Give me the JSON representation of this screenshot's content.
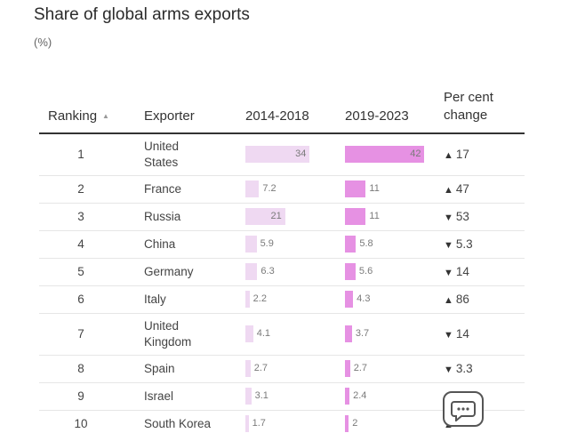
{
  "title": "Share of global arms exports",
  "subtitle": "(%)",
  "headers": {
    "ranking": "Ranking",
    "sort_icon": "sort-ascending-icon",
    "exporter": "Exporter",
    "period1": "2014-2018",
    "period2": "2019-2023",
    "change_line1": "Per cent",
    "change_line2": "change"
  },
  "colors": {
    "bar_2014_2018": "#efd9f2",
    "bar_2019_2023": "#e691e3",
    "rule": "#333333"
  },
  "chart_data": {
    "type": "table",
    "title": "Share of global arms exports",
    "subtitle": "(%)",
    "columns": [
      "Ranking",
      "Exporter",
      "2014-2018",
      "2019-2023",
      "Per cent change"
    ],
    "series": [
      {
        "name": "2014-2018",
        "values": [
          34,
          7.2,
          21,
          5.9,
          6.3,
          2.2,
          4.1,
          2.7,
          3.1,
          1.7
        ]
      },
      {
        "name": "2019-2023",
        "values": [
          42,
          11,
          11,
          5.8,
          5.6,
          4.3,
          3.7,
          2.7,
          2.4,
          2
        ]
      }
    ],
    "rows": [
      {
        "rank": "1",
        "exporter": [
          "United",
          "States"
        ],
        "v1": 34,
        "v1_label": "34",
        "v2": 42,
        "v2_label": "42",
        "change_dir": "up",
        "change": "17"
      },
      {
        "rank": "2",
        "exporter": [
          "France"
        ],
        "v1": 7.2,
        "v1_label": "7.2",
        "v2": 11,
        "v2_label": "11",
        "change_dir": "up",
        "change": "47"
      },
      {
        "rank": "3",
        "exporter": [
          "Russia"
        ],
        "v1": 21,
        "v1_label": "21",
        "v2": 11,
        "v2_label": "11",
        "change_dir": "down",
        "change": "53"
      },
      {
        "rank": "4",
        "exporter": [
          "China"
        ],
        "v1": 5.9,
        "v1_label": "5.9",
        "v2": 5.8,
        "v2_label": "5.8",
        "change_dir": "down",
        "change": "5.3"
      },
      {
        "rank": "5",
        "exporter": [
          "Germany"
        ],
        "v1": 6.3,
        "v1_label": "6.3",
        "v2": 5.6,
        "v2_label": "5.6",
        "change_dir": "down",
        "change": "14"
      },
      {
        "rank": "6",
        "exporter": [
          "Italy"
        ],
        "v1": 2.2,
        "v1_label": "2.2",
        "v2": 4.3,
        "v2_label": "4.3",
        "change_dir": "up",
        "change": "86"
      },
      {
        "rank": "7",
        "exporter": [
          "United",
          "Kingdom"
        ],
        "v1": 4.1,
        "v1_label": "4.1",
        "v2": 3.7,
        "v2_label": "3.7",
        "change_dir": "down",
        "change": "14"
      },
      {
        "rank": "8",
        "exporter": [
          "Spain"
        ],
        "v1": 2.7,
        "v1_label": "2.7",
        "v2": 2.7,
        "v2_label": "2.7",
        "change_dir": "down",
        "change": "3.3"
      },
      {
        "rank": "9",
        "exporter": [
          "Israel"
        ],
        "v1": 3.1,
        "v1_label": "3.1",
        "v2": 2.4,
        "v2_label": "2.4",
        "change_dir": "",
        "change": ""
      },
      {
        "rank": "10",
        "exporter": [
          "South Korea"
        ],
        "v1": 1.7,
        "v1_label": "1.7",
        "v2": 2,
        "v2_label": "2",
        "change_dir": "up",
        "change": ""
      }
    ]
  },
  "watermark_icon": "chat-bubble-icon"
}
